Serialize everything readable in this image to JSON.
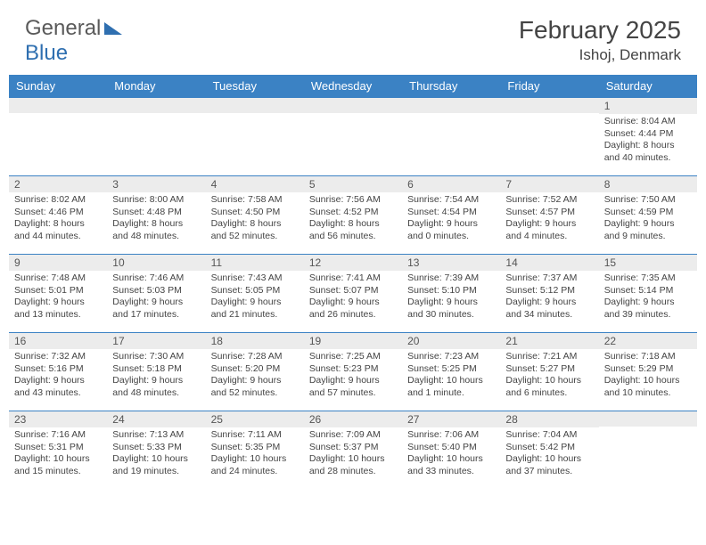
{
  "brand": {
    "part1": "General",
    "part2": "Blue"
  },
  "title": "February 2025",
  "location": "Ishoj, Denmark",
  "colors": {
    "header_bg": "#3b82c4",
    "header_text": "#ffffff",
    "daynum_bg": "#ececec",
    "cell_border": "#3b82c4",
    "text": "#444444"
  },
  "weekdays": [
    "Sunday",
    "Monday",
    "Tuesday",
    "Wednesday",
    "Thursday",
    "Friday",
    "Saturday"
  ],
  "weeks": [
    [
      {
        "n": "",
        "sr": "",
        "ss": "",
        "dl": ""
      },
      {
        "n": "",
        "sr": "",
        "ss": "",
        "dl": ""
      },
      {
        "n": "",
        "sr": "",
        "ss": "",
        "dl": ""
      },
      {
        "n": "",
        "sr": "",
        "ss": "",
        "dl": ""
      },
      {
        "n": "",
        "sr": "",
        "ss": "",
        "dl": ""
      },
      {
        "n": "",
        "sr": "",
        "ss": "",
        "dl": ""
      },
      {
        "n": "1",
        "sr": "8:04 AM",
        "ss": "4:44 PM",
        "dl": "8 hours and 40 minutes."
      }
    ],
    [
      {
        "n": "2",
        "sr": "8:02 AM",
        "ss": "4:46 PM",
        "dl": "8 hours and 44 minutes."
      },
      {
        "n": "3",
        "sr": "8:00 AM",
        "ss": "4:48 PM",
        "dl": "8 hours and 48 minutes."
      },
      {
        "n": "4",
        "sr": "7:58 AM",
        "ss": "4:50 PM",
        "dl": "8 hours and 52 minutes."
      },
      {
        "n": "5",
        "sr": "7:56 AM",
        "ss": "4:52 PM",
        "dl": "8 hours and 56 minutes."
      },
      {
        "n": "6",
        "sr": "7:54 AM",
        "ss": "4:54 PM",
        "dl": "9 hours and 0 minutes."
      },
      {
        "n": "7",
        "sr": "7:52 AM",
        "ss": "4:57 PM",
        "dl": "9 hours and 4 minutes."
      },
      {
        "n": "8",
        "sr": "7:50 AM",
        "ss": "4:59 PM",
        "dl": "9 hours and 9 minutes."
      }
    ],
    [
      {
        "n": "9",
        "sr": "7:48 AM",
        "ss": "5:01 PM",
        "dl": "9 hours and 13 minutes."
      },
      {
        "n": "10",
        "sr": "7:46 AM",
        "ss": "5:03 PM",
        "dl": "9 hours and 17 minutes."
      },
      {
        "n": "11",
        "sr": "7:43 AM",
        "ss": "5:05 PM",
        "dl": "9 hours and 21 minutes."
      },
      {
        "n": "12",
        "sr": "7:41 AM",
        "ss": "5:07 PM",
        "dl": "9 hours and 26 minutes."
      },
      {
        "n": "13",
        "sr": "7:39 AM",
        "ss": "5:10 PM",
        "dl": "9 hours and 30 minutes."
      },
      {
        "n": "14",
        "sr": "7:37 AM",
        "ss": "5:12 PM",
        "dl": "9 hours and 34 minutes."
      },
      {
        "n": "15",
        "sr": "7:35 AM",
        "ss": "5:14 PM",
        "dl": "9 hours and 39 minutes."
      }
    ],
    [
      {
        "n": "16",
        "sr": "7:32 AM",
        "ss": "5:16 PM",
        "dl": "9 hours and 43 minutes."
      },
      {
        "n": "17",
        "sr": "7:30 AM",
        "ss": "5:18 PM",
        "dl": "9 hours and 48 minutes."
      },
      {
        "n": "18",
        "sr": "7:28 AM",
        "ss": "5:20 PM",
        "dl": "9 hours and 52 minutes."
      },
      {
        "n": "19",
        "sr": "7:25 AM",
        "ss": "5:23 PM",
        "dl": "9 hours and 57 minutes."
      },
      {
        "n": "20",
        "sr": "7:23 AM",
        "ss": "5:25 PM",
        "dl": "10 hours and 1 minute."
      },
      {
        "n": "21",
        "sr": "7:21 AM",
        "ss": "5:27 PM",
        "dl": "10 hours and 6 minutes."
      },
      {
        "n": "22",
        "sr": "7:18 AM",
        "ss": "5:29 PM",
        "dl": "10 hours and 10 minutes."
      }
    ],
    [
      {
        "n": "23",
        "sr": "7:16 AM",
        "ss": "5:31 PM",
        "dl": "10 hours and 15 minutes."
      },
      {
        "n": "24",
        "sr": "7:13 AM",
        "ss": "5:33 PM",
        "dl": "10 hours and 19 minutes."
      },
      {
        "n": "25",
        "sr": "7:11 AM",
        "ss": "5:35 PM",
        "dl": "10 hours and 24 minutes."
      },
      {
        "n": "26",
        "sr": "7:09 AM",
        "ss": "5:37 PM",
        "dl": "10 hours and 28 minutes."
      },
      {
        "n": "27",
        "sr": "7:06 AM",
        "ss": "5:40 PM",
        "dl": "10 hours and 33 minutes."
      },
      {
        "n": "28",
        "sr": "7:04 AM",
        "ss": "5:42 PM",
        "dl": "10 hours and 37 minutes."
      },
      {
        "n": "",
        "sr": "",
        "ss": "",
        "dl": ""
      }
    ]
  ],
  "labels": {
    "sunrise": "Sunrise:",
    "sunset": "Sunset:",
    "daylight": "Daylight:"
  }
}
